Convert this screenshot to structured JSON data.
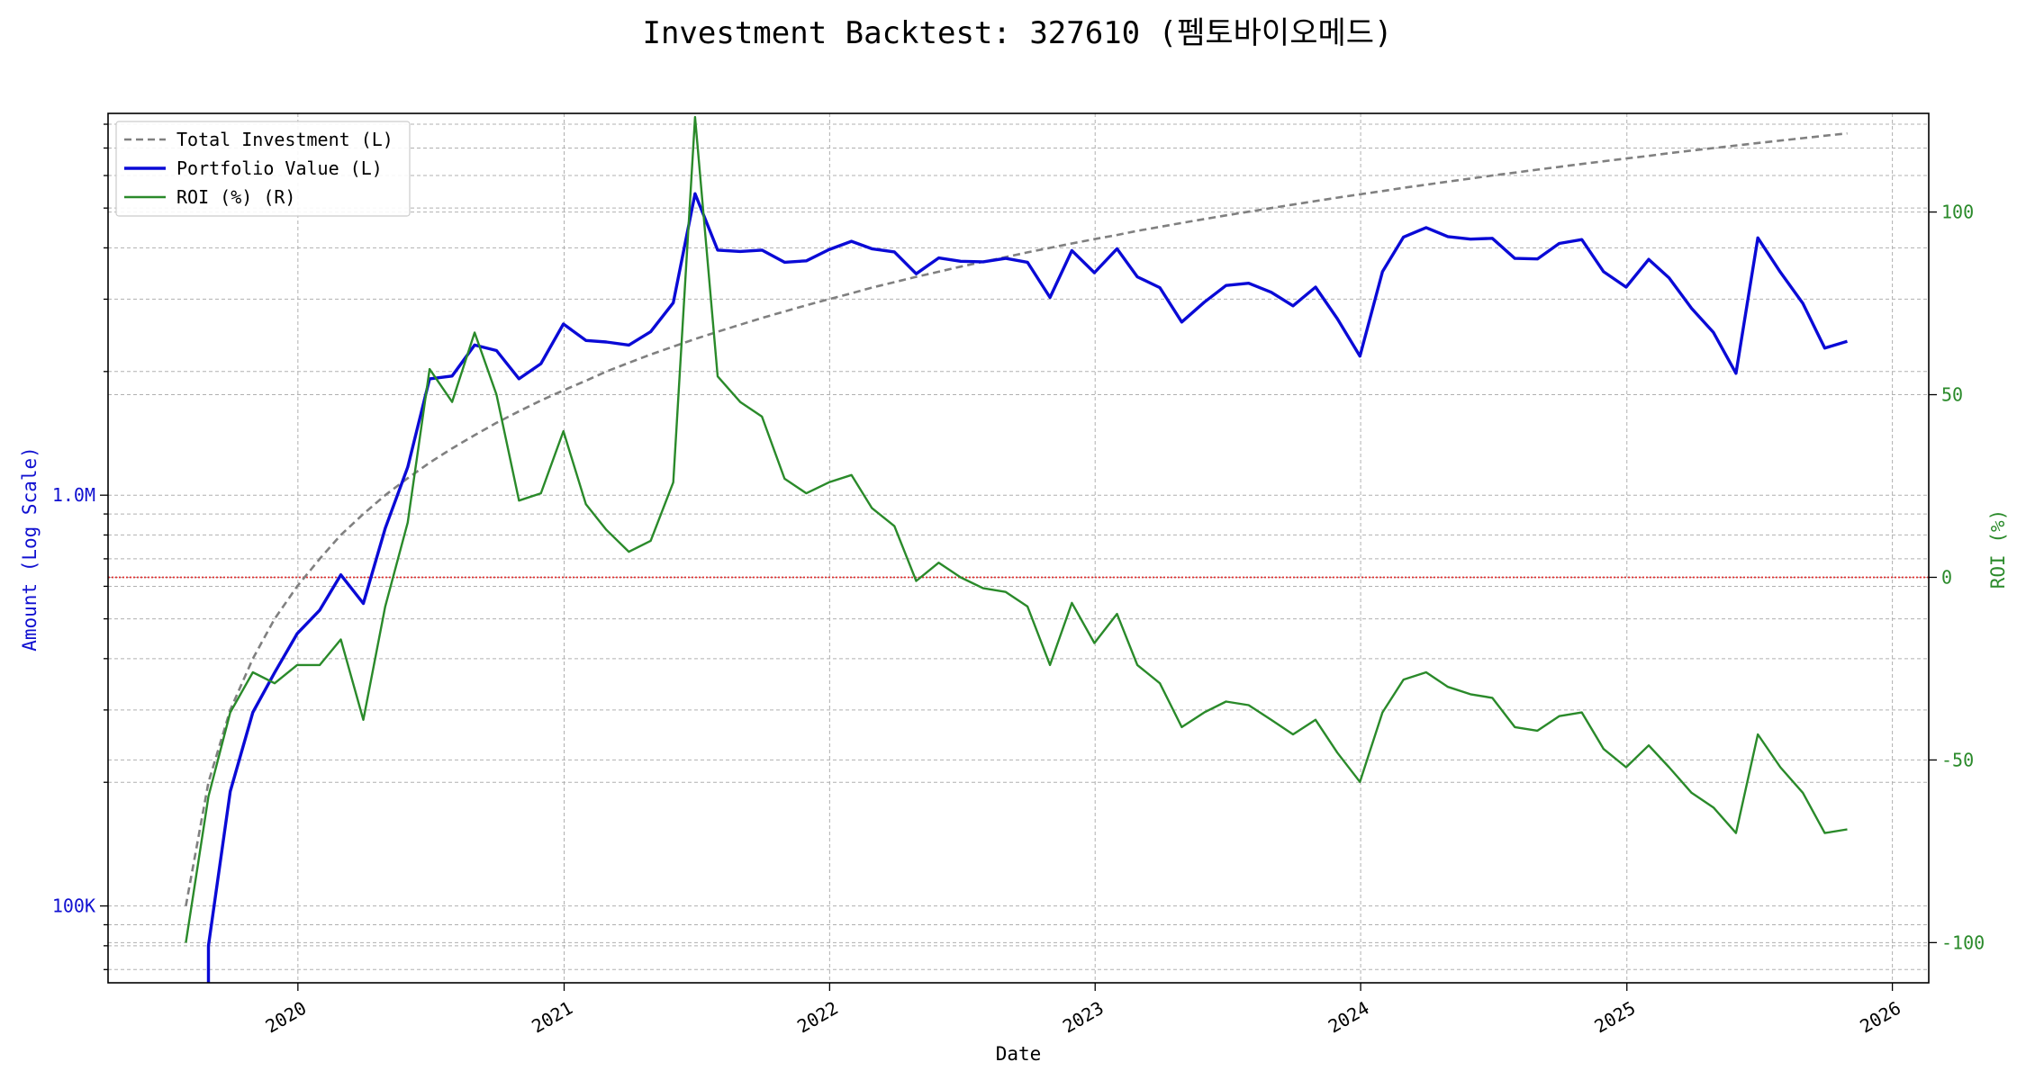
{
  "chart_data": {
    "type": "line",
    "title": "Investment Backtest: 327610 (펨토바이오메드)",
    "xlabel": "Date",
    "ylabel_left": "Amount (Log Scale)",
    "ylabel_right": "ROI (%)",
    "left_axis": {
      "scale": "log",
      "ylim": [
        65000,
        8500000
      ],
      "tick_labels": [
        {
          "value": 100000,
          "label": "100K"
        },
        {
          "value": 1000000,
          "label": "1.0M"
        }
      ]
    },
    "right_axis": {
      "scale": "linear",
      "ylim": [
        -111,
        127
      ],
      "ticks": [
        -100,
        -50,
        0,
        50,
        100
      ]
    },
    "x_axis": {
      "xlim": [
        "2019-04-15",
        "2026-02-20"
      ],
      "ticks": [
        {
          "date": "2020-01-01",
          "label": "2020"
        },
        {
          "date": "2021-01-01",
          "label": "2021"
        },
        {
          "date": "2022-01-01",
          "label": "2022"
        },
        {
          "date": "2023-01-01",
          "label": "2023"
        },
        {
          "date": "2024-01-01",
          "label": "2024"
        },
        {
          "date": "2025-01-01",
          "label": "2025"
        },
        {
          "date": "2026-01-01",
          "label": "2026"
        }
      ]
    },
    "grid": true,
    "legend_position": "top-left",
    "reference_line": {
      "axis": "right",
      "value": 0,
      "color": "#e03030",
      "style": "dotted"
    },
    "dates": [
      "2019-07-31",
      "2019-08-31",
      "2019-09-30",
      "2019-10-31",
      "2019-11-30",
      "2019-12-31",
      "2020-01-31",
      "2020-02-29",
      "2020-03-31",
      "2020-04-30",
      "2020-05-31",
      "2020-06-30",
      "2020-07-31",
      "2020-08-31",
      "2020-09-30",
      "2020-10-31",
      "2020-11-30",
      "2020-12-31",
      "2021-01-31",
      "2021-02-28",
      "2021-03-31",
      "2021-04-30",
      "2021-05-31",
      "2021-06-30",
      "2021-07-31",
      "2021-08-31",
      "2021-09-30",
      "2021-10-31",
      "2021-11-30",
      "2021-12-31",
      "2022-01-31",
      "2022-02-28",
      "2022-03-31",
      "2022-04-30",
      "2022-05-31",
      "2022-06-30",
      "2022-07-31",
      "2022-08-31",
      "2022-09-30",
      "2022-10-31",
      "2022-11-30",
      "2022-12-31",
      "2023-01-31",
      "2023-02-28",
      "2023-03-31",
      "2023-04-30",
      "2023-05-31",
      "2023-06-30",
      "2023-07-31",
      "2023-08-31",
      "2023-09-30",
      "2023-10-31",
      "2023-11-30",
      "2023-12-31",
      "2024-01-31",
      "2024-02-29",
      "2024-03-31",
      "2024-04-30",
      "2024-05-31",
      "2024-06-30",
      "2024-07-31",
      "2024-08-31",
      "2024-09-30",
      "2024-10-31",
      "2024-11-30",
      "2024-12-31",
      "2025-01-31",
      "2025-02-28",
      "2025-03-31",
      "2025-04-30",
      "2025-05-31",
      "2025-06-30",
      "2025-07-31",
      "2025-08-31",
      "2025-09-30",
      "2025-10-31"
    ],
    "series": [
      {
        "name": "Total Investment (L)",
        "axis": "left",
        "color": "#808080",
        "style": "dashed",
        "values": [
          100000,
          200000,
          300000,
          400000,
          500000,
          600000,
          700000,
          800000,
          900000,
          1000000,
          1100000,
          1200000,
          1300000,
          1400000,
          1500000,
          1600000,
          1700000,
          1800000,
          1900000,
          2000000,
          2100000,
          2200000,
          2300000,
          2400000,
          2500000,
          2600000,
          2700000,
          2800000,
          2900000,
          3000000,
          3100000,
          3200000,
          3300000,
          3400000,
          3500000,
          3600000,
          3700000,
          3800000,
          3900000,
          4000000,
          4100000,
          4200000,
          4300000,
          4400000,
          4500000,
          4600000,
          4700000,
          4800000,
          4900000,
          5000000,
          5100000,
          5200000,
          5300000,
          5400000,
          5500000,
          5600000,
          5700000,
          5800000,
          5900000,
          6000000,
          6100000,
          6200000,
          6300000,
          6400000,
          6500000,
          6600000,
          6700000,
          6800000,
          6900000,
          7000000,
          7100000,
          7200000,
          7300000,
          7400000,
          7500000,
          7600000
        ]
      },
      {
        "name": "Portfolio Value (L)",
        "axis": "left",
        "color": "#0a0ad6",
        "style": "solid",
        "values": [
          null,
          80000,
          190000,
          296000,
          370000,
          460000,
          525000,
          640000,
          545000,
          830000,
          1170000,
          1920000,
          1950000,
          2320000,
          2250000,
          1920000,
          2090000,
          2610000,
          2380000,
          2360000,
          2320000,
          2500000,
          2940000,
          5420000,
          3950000,
          3920000,
          3950000,
          3690000,
          3720000,
          3960000,
          4150000,
          3980000,
          3910000,
          3460000,
          3780000,
          3710000,
          3700000,
          3770000,
          3690000,
          3030000,
          3940000,
          3480000,
          3980000,
          3400000,
          3200000,
          2640000,
          2950000,
          3240000,
          3280000,
          3120000,
          2890000,
          3210000,
          2690000,
          2180000,
          3500000,
          4250000,
          4480000,
          4260000,
          4200000,
          4220000,
          3770000,
          3760000,
          4100000,
          4190000,
          3500000,
          3210000,
          3750000,
          3380000,
          2850000,
          2490000,
          1980000,
          4230000,
          3490000,
          2930000,
          2280000,
          2370000
        ]
      },
      {
        "name": "ROI (%) (R)",
        "axis": "right",
        "color": "#2a8a2a",
        "style": "solid",
        "values": [
          -100,
          -60,
          -37,
          -26,
          -29,
          -24,
          -24,
          -17,
          -39,
          -8,
          15,
          57,
          48,
          67,
          50,
          21,
          23,
          40,
          20,
          13,
          7,
          10,
          26,
          126,
          55,
          48,
          44,
          27,
          23,
          26,
          28,
          19,
          14,
          -1,
          4,
          0,
          -3,
          -4,
          -8,
          -24,
          -7,
          -18,
          -10,
          -24,
          -29,
          -41,
          -37,
          -34,
          -35,
          -39,
          -43,
          -39,
          -48,
          -56,
          -37,
          -28,
          -26,
          -30,
          -32,
          -33,
          -41,
          -42,
          -38,
          -37,
          -47,
          -52,
          -46,
          -52,
          -59,
          -63,
          -70,
          -43,
          -52,
          -59,
          -70,
          -69
        ]
      }
    ]
  }
}
